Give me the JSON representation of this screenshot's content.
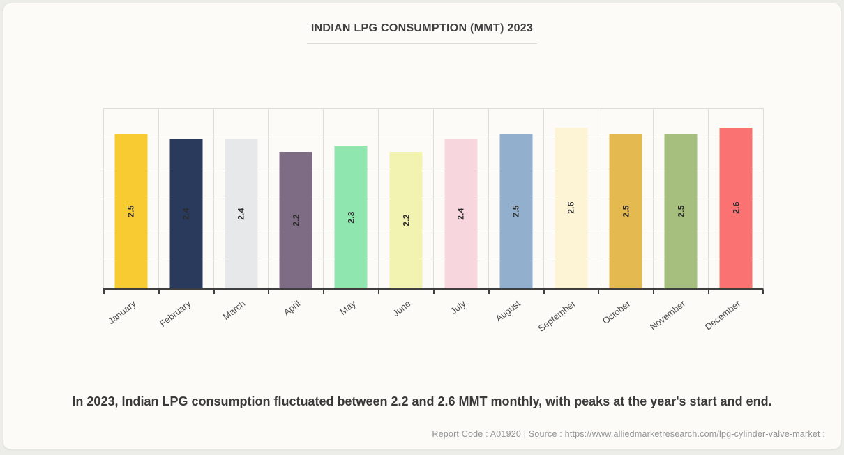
{
  "title": "INDIAN LPG CONSUMPTION (MMT) 2023",
  "caption": "In 2023, Indian LPG consumption fluctuated between 2.2 and 2.6 MMT monthly, with peaks at the year's start and end.",
  "footer": {
    "text": "Report Code : A01920  |  Source : https://www.alliedmarketresearch.com/lpg-cylinder-valve-market :"
  },
  "colors": {
    "page_bg": "#ECECE9",
    "card_bg": "#FCFBF8",
    "card_border": "#E6E5E2",
    "grid": "#DDDDDA",
    "axis": "#3F3F3F",
    "title_text": "#3F3F3F",
    "caption_text": "#3A3A3A",
    "footer_text": "#929496",
    "label_text": "#4B4B4B",
    "value_text": "#2B2B2B"
  },
  "chart_data": {
    "type": "bar",
    "title": "INDIAN LPG CONSUMPTION (MMT) 2023",
    "categories": [
      "January",
      "February",
      "March",
      "April",
      "May",
      "June",
      "July",
      "August",
      "September",
      "October",
      "November",
      "December"
    ],
    "values": [
      2.5,
      2.4,
      2.4,
      2.2,
      2.3,
      2.2,
      2.4,
      2.5,
      2.6,
      2.5,
      2.5,
      2.6
    ],
    "bar_colors": [
      "#F8CB33",
      "#2A3A5C",
      "#E7E8E9",
      "#7D6C84",
      "#90E6AF",
      "#F2F3B0",
      "#F7D6DD",
      "#92AFCE",
      "#FCF4D4",
      "#E4BA50",
      "#A6BF7E",
      "#FA7272"
    ],
    "xlabel": "",
    "ylabel": "",
    "unit": "MMT",
    "ylim": [
      0,
      2.9
    ],
    "grid": true,
    "legend": false,
    "value_label_style": "rotated -90deg inside bar, centered",
    "category_label_style": "rotated -38deg below axis"
  }
}
